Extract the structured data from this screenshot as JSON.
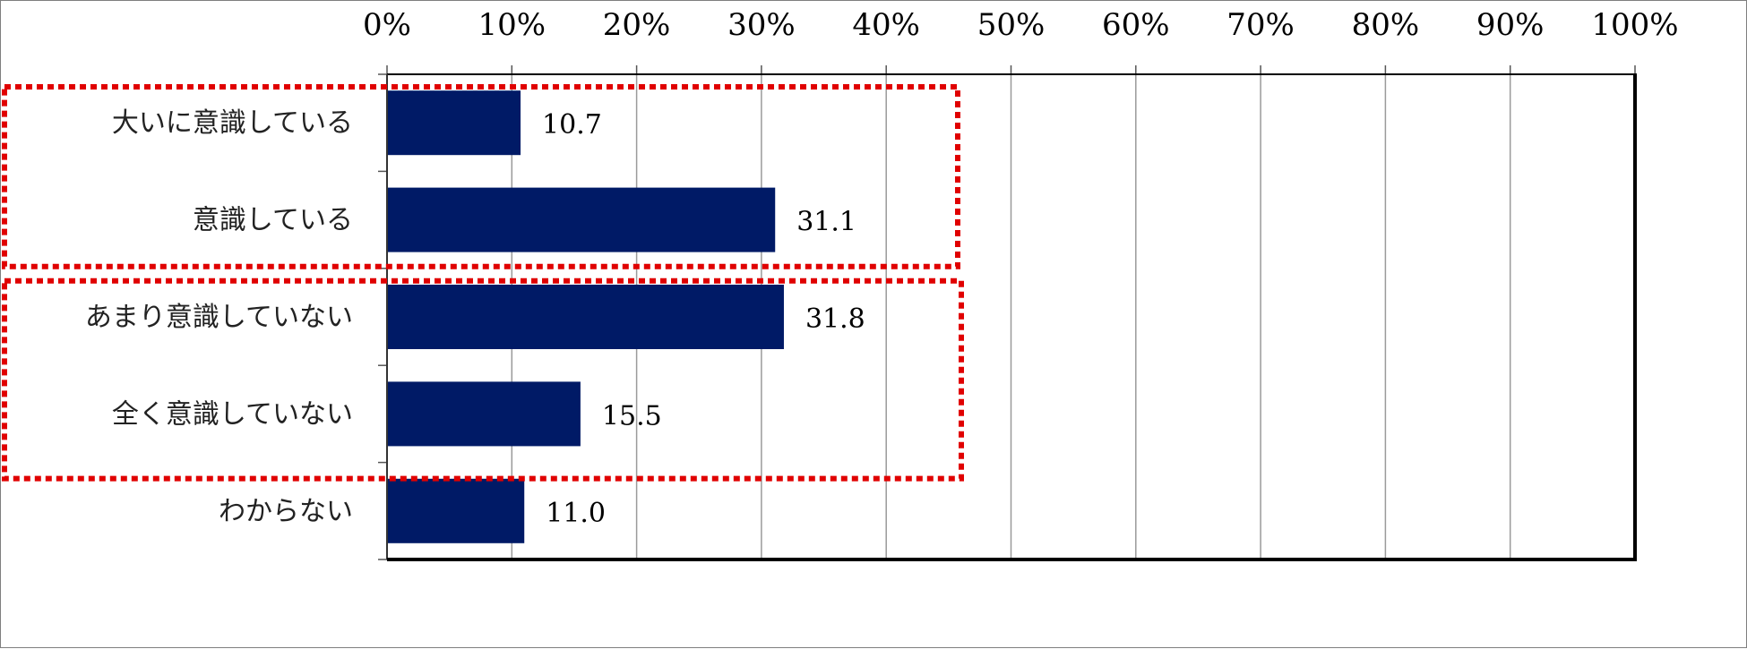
{
  "chart_data": {
    "type": "bar",
    "orientation": "horizontal",
    "categories": [
      "大いに意識している",
      "意識している",
      "あまり意識していない",
      "全く意識していない",
      "わからない"
    ],
    "values": [
      10.7,
      31.1,
      31.8,
      15.5,
      11.0
    ],
    "value_labels": [
      "10.7",
      "31.1",
      "31.8",
      "15.5",
      "11.0"
    ],
    "x_ticks": [
      "0%",
      "10%",
      "20%",
      "30%",
      "40%",
      "50%",
      "60%",
      "70%",
      "80%",
      "90%",
      "100%"
    ],
    "xlim": [
      0,
      100
    ],
    "x_axis_position": "top",
    "grid": true,
    "bar_color": "#001a66",
    "highlight_color": "#e00000",
    "highlight_groups": [
      [
        "大いに意識している",
        "意識している"
      ],
      [
        "あまり意識していない",
        "全く意識していない"
      ]
    ]
  }
}
